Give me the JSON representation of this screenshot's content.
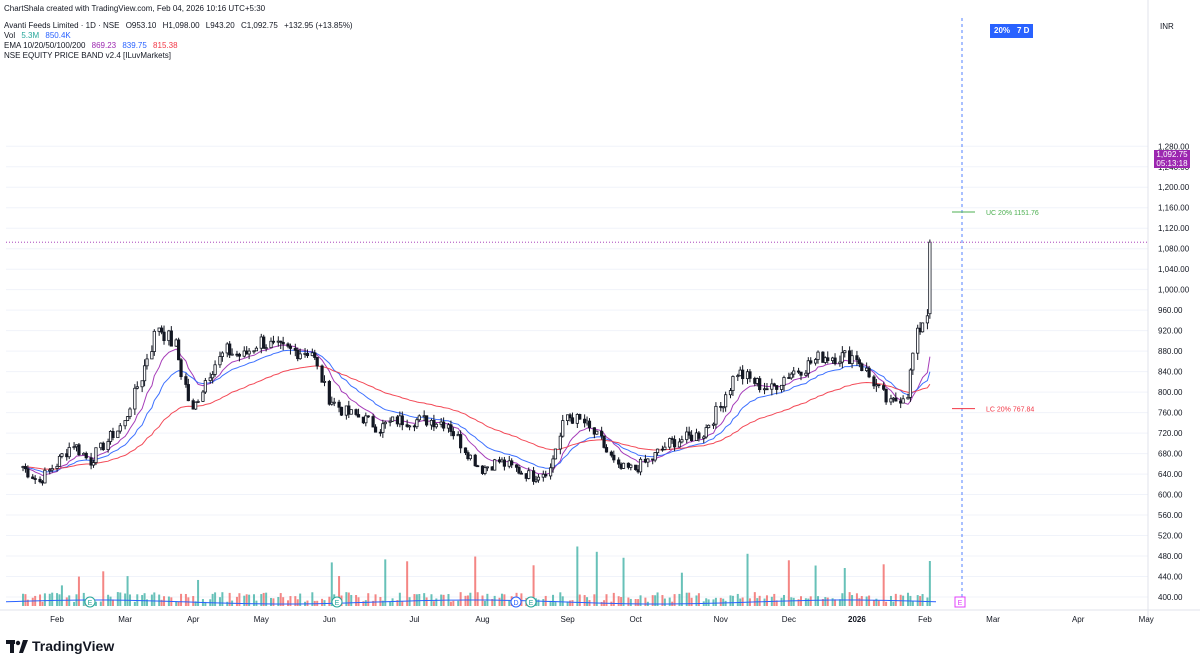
{
  "credit": "ChartShala created with TradingView.com, Feb 04, 2026 10:16 UTC+5:30",
  "header": {
    "symbol": "Avanti Feeds Limited · 1D · NSE",
    "open": "O953.10",
    "high": "H1,098.00",
    "low": "L943.20",
    "close": "C1,092.75",
    "change": "+132.95 (+13.85%)",
    "vol_label": "Vol",
    "vol_value": "5.3M",
    "vol_ma": "850.4K",
    "ema_label": "EMA 10/20/50/100/200",
    "ema10": "869.23",
    "ema20": "839.75",
    "ema50": "815.38",
    "indicator": "NSE EQUITY PRICE BAND v2.4 [ILuvMarkets]"
  },
  "badges": {
    "band": "20%",
    "days": "7 D"
  },
  "currency": "INR",
  "current_price": {
    "price": "1,092.75",
    "countdown": "05:13:18"
  },
  "price_band": {
    "uc_label": "UC",
    "uc_pct": "20%",
    "uc_value": "1151.76",
    "lc_label": "LC",
    "lc_pct": "20%",
    "lc_value": "767.84"
  },
  "logo_text": "TradingView",
  "colors": {
    "up": "#131722",
    "down": "#131722",
    "vol_up": "#26a69a",
    "vol_down": "#ef5350",
    "ema10": "#9c27b0",
    "ema20": "#2962ff",
    "ema50": "#f23645",
    "uc": "#4caf50",
    "lc": "#f23645",
    "grid": "#f0f3fa",
    "last_price": "#9c27b0",
    "event": "#26a69a"
  },
  "events": [
    {
      "label": "E",
      "month_pos": "Feb"
    },
    {
      "label": "E",
      "month_pos": "May"
    },
    {
      "label": "D",
      "month_pos": "Aug"
    },
    {
      "label": "E",
      "month_pos": "Aug"
    },
    {
      "label": "E",
      "month_pos": "Feb 2026"
    }
  ],
  "chart_data": {
    "type": "candlestick",
    "title": "Avanti Feeds Limited · 1D · NSE",
    "y_tick_labels": [
      "400.00",
      "440.00",
      "480.00",
      "520.00",
      "560.00",
      "600.00",
      "640.00",
      "680.00",
      "720.00",
      "760.00",
      "800.00",
      "840.00",
      "880.00",
      "920.00",
      "960.00",
      "1,000.00",
      "1,040.00",
      "1,080.00",
      "1,120.00",
      "1,160.00",
      "1,200.00",
      "1,240.00",
      "1,280.00"
    ],
    "x_tick_labels": [
      "Feb",
      "Mar",
      "Apr",
      "May",
      "Jun",
      "Jul",
      "Aug",
      "Sep",
      "Oct",
      "Nov",
      "Dec",
      "2026",
      "Feb",
      "Mar",
      "Apr",
      "May"
    ],
    "ylim": [
      400,
      1280
    ],
    "close_path": [
      {
        "date": "2025-01-27",
        "close": 655
      },
      {
        "date": "2025-02-03",
        "close": 625
      },
      {
        "date": "2025-02-10",
        "close": 660
      },
      {
        "date": "2025-02-17",
        "close": 700
      },
      {
        "date": "2025-02-24",
        "close": 665
      },
      {
        "date": "2025-03-03",
        "close": 705
      },
      {
        "date": "2025-03-10",
        "close": 740
      },
      {
        "date": "2025-03-17",
        "close": 830
      },
      {
        "date": "2025-03-24",
        "close": 930
      },
      {
        "date": "2025-03-31",
        "close": 890
      },
      {
        "date": "2025-04-07",
        "close": 760
      },
      {
        "date": "2025-04-14",
        "close": 840
      },
      {
        "date": "2025-04-21",
        "close": 880
      },
      {
        "date": "2025-04-28",
        "close": 870
      },
      {
        "date": "2025-05-05",
        "close": 900
      },
      {
        "date": "2025-05-12",
        "close": 885
      },
      {
        "date": "2025-05-19",
        "close": 880
      },
      {
        "date": "2025-05-26",
        "close": 880
      },
      {
        "date": "2025-06-02",
        "close": 790
      },
      {
        "date": "2025-06-09",
        "close": 760
      },
      {
        "date": "2025-06-16",
        "close": 750
      },
      {
        "date": "2025-06-23",
        "close": 730
      },
      {
        "date": "2025-06-30",
        "close": 745
      },
      {
        "date": "2025-07-07",
        "close": 745
      },
      {
        "date": "2025-07-14",
        "close": 745
      },
      {
        "date": "2025-07-21",
        "close": 740
      },
      {
        "date": "2025-07-28",
        "close": 690
      },
      {
        "date": "2025-08-04",
        "close": 650
      },
      {
        "date": "2025-08-11",
        "close": 665
      },
      {
        "date": "2025-08-18",
        "close": 650
      },
      {
        "date": "2025-08-25",
        "close": 635
      },
      {
        "date": "2025-09-01",
        "close": 650
      },
      {
        "date": "2025-09-08",
        "close": 755
      },
      {
        "date": "2025-09-15",
        "close": 740
      },
      {
        "date": "2025-09-22",
        "close": 705
      },
      {
        "date": "2025-09-29",
        "close": 650
      },
      {
        "date": "2025-10-06",
        "close": 650
      },
      {
        "date": "2025-10-13",
        "close": 670
      },
      {
        "date": "2025-10-20",
        "close": 700
      },
      {
        "date": "2025-10-27",
        "close": 710
      },
      {
        "date": "2025-11-03",
        "close": 720
      },
      {
        "date": "2025-11-10",
        "close": 770
      },
      {
        "date": "2025-11-17",
        "close": 840
      },
      {
        "date": "2025-11-24",
        "close": 820
      },
      {
        "date": "2025-12-01",
        "close": 805
      },
      {
        "date": "2025-12-08",
        "close": 835
      },
      {
        "date": "2025-12-15",
        "close": 850
      },
      {
        "date": "2025-12-22",
        "close": 870
      },
      {
        "date": "2026-01-05",
        "close": 870
      },
      {
        "date": "2026-01-12",
        "close": 820
      },
      {
        "date": "2026-01-19",
        "close": 775
      },
      {
        "date": "2026-01-26",
        "close": 800
      },
      {
        "date": "2026-01-30",
        "close": 910
      },
      {
        "date": "2026-02-03",
        "close": 955
      },
      {
        "date": "2026-02-04",
        "close": 1092.75
      }
    ],
    "series": [
      {
        "name": "EMA 10",
        "last": 869.23
      },
      {
        "name": "EMA 20",
        "last": 839.75
      },
      {
        "name": "EMA 50",
        "last": 815.38
      }
    ],
    "volume": {
      "last": "5.3M",
      "ma": "850.4K"
    },
    "price_band": {
      "upper": 1151.76,
      "lower": 767.84
    },
    "last_price": 1092.75
  }
}
